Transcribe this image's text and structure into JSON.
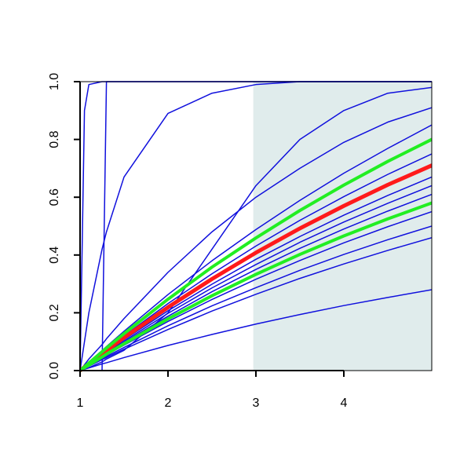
{
  "chart_data": {
    "type": "line",
    "x": [
      1,
      1.05,
      1.1,
      1.25,
      1.3,
      1.5,
      2,
      2.5,
      3,
      3.5,
      4,
      4.5,
      5
    ],
    "xlim": [
      1,
      5
    ],
    "xticks": [
      1,
      2,
      3,
      4
    ],
    "ylim": [
      0,
      1
    ],
    "yticks": [
      {
        "value": 0,
        "label": "0.0"
      },
      0.2,
      0.4,
      0.6,
      0.8,
      {
        "value": 1,
        "label": "1.0"
      }
    ],
    "shaded_region": {
      "xlim": [
        2.97,
        5
      ],
      "color": "#e0ecec"
    },
    "series": [
      {
        "color": "#1010dd",
        "line_width": 1.5,
        "values": [
          0,
          0.9,
          0.99,
          1,
          1,
          1,
          1,
          1,
          1,
          1,
          1,
          1,
          1
        ]
      },
      {
        "color": "#1010dd",
        "line_width": 1.5,
        "values": [
          0,
          0,
          0,
          0,
          1,
          1,
          1,
          1,
          1,
          1,
          1,
          1,
          1
        ]
      },
      {
        "color": "#1010dd",
        "line_width": 1.5,
        "values": [
          0,
          0.1,
          0.2,
          0.42,
          0.48,
          0.67,
          0.89,
          0.96,
          0.99,
          1,
          1,
          1,
          1
        ]
      },
      {
        "color": "#1010dd",
        "line_width": 1.5,
        "values": [
          0,
          0.005,
          0.01,
          0.03,
          0.04,
          0.07,
          0.2,
          0.42,
          0.64,
          0.8,
          0.9,
          0.96,
          0.98
        ]
      },
      {
        "color": "#1010dd",
        "line_width": 1.5,
        "values": [
          0,
          0.02,
          0.04,
          0.09,
          0.11,
          0.18,
          0.34,
          0.48,
          0.6,
          0.7,
          0.79,
          0.86,
          0.91
        ]
      },
      {
        "color": "#1010dd",
        "line_width": 1.5,
        "values": [
          0,
          0.005,
          0.009,
          0.023,
          0.027,
          0.045,
          0.087,
          0.125,
          0.161,
          0.194,
          0.225,
          0.253,
          0.28
        ]
      },
      {
        "color": "#1010dd",
        "line_width": 1.5,
        "values": [
          0,
          0.008,
          0.015,
          0.038,
          0.045,
          0.074,
          0.142,
          0.206,
          0.264,
          0.319,
          0.369,
          0.416,
          0.46
        ]
      },
      {
        "color": "#1010dd",
        "line_width": 1.5,
        "values": [
          0,
          0.008,
          0.017,
          0.041,
          0.049,
          0.08,
          0.155,
          0.224,
          0.287,
          0.347,
          0.402,
          0.453,
          0.5
        ]
      },
      {
        "color": "#1010dd",
        "line_width": 1.5,
        "values": [
          0,
          0.009,
          0.018,
          0.045,
          0.054,
          0.088,
          0.17,
          0.246,
          0.316,
          0.381,
          0.442,
          0.498,
          0.55
        ]
      },
      {
        "color": "#1010dd",
        "line_width": 1.5,
        "values": [
          0,
          0.01,
          0.02,
          0.05,
          0.06,
          0.098,
          0.188,
          0.273,
          0.35,
          0.423,
          0.49,
          0.552,
          0.61
        ]
      },
      {
        "color": "#1010dd",
        "line_width": 1.5,
        "values": [
          0,
          0.011,
          0.021,
          0.052,
          0.062,
          0.102,
          0.198,
          0.286,
          0.367,
          0.444,
          0.514,
          0.579,
          0.64
        ]
      },
      {
        "color": "#1010dd",
        "line_width": 1.5,
        "values": [
          0,
          0.011,
          0.022,
          0.055,
          0.065,
          0.107,
          0.207,
          0.299,
          0.385,
          0.464,
          0.538,
          0.606,
          0.67
        ]
      },
      {
        "color": "#1010dd",
        "line_width": 1.5,
        "values": [
          0,
          0.012,
          0.025,
          0.061,
          0.073,
          0.12,
          0.232,
          0.335,
          0.431,
          0.52,
          0.602,
          0.679,
          0.75
        ]
      },
      {
        "color": "#1010dd",
        "line_width": 1.5,
        "values": [
          0,
          0.014,
          0.028,
          0.069,
          0.083,
          0.136,
          0.263,
          0.38,
          0.488,
          0.589,
          0.683,
          0.769,
          0.85
        ]
      },
      {
        "color": "#ff1a1a",
        "line_width": 5,
        "values": [
          0,
          0.012,
          0.023,
          0.058,
          0.069,
          0.114,
          0.219,
          0.317,
          0.408,
          0.492,
          0.57,
          0.643,
          0.71
        ]
      },
      {
        "color": "#22ee22",
        "line_width": 4,
        "values": [
          0,
          0.01,
          0.019,
          0.047,
          0.057,
          0.093,
          0.179,
          0.259,
          0.333,
          0.402,
          0.466,
          0.525,
          0.58
        ]
      },
      {
        "color": "#22ee22",
        "line_width": 4,
        "values": [
          0,
          0.013,
          0.026,
          0.065,
          0.078,
          0.128,
          0.247,
          0.358,
          0.459,
          0.554,
          0.642,
          0.724,
          0.8
        ]
      }
    ]
  }
}
